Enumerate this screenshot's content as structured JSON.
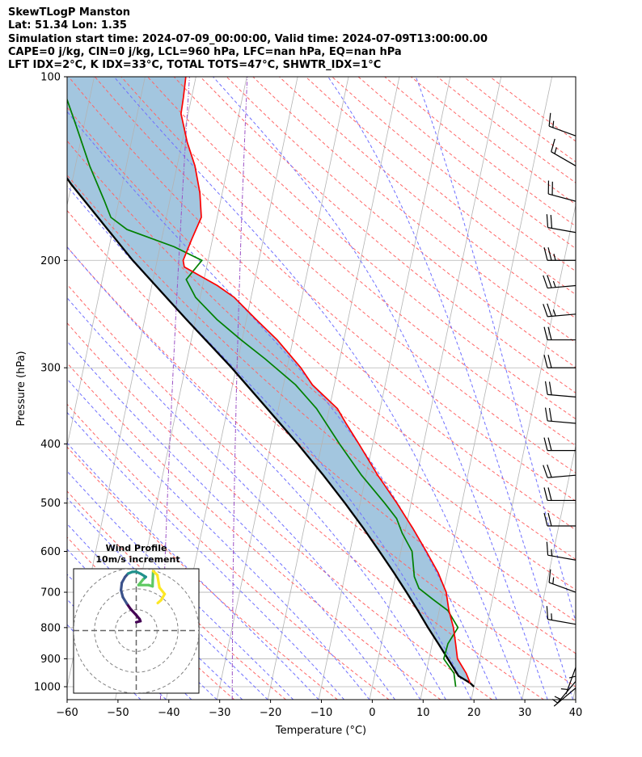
{
  "header": {
    "line1": "SkewTLogP Manston",
    "line2": "Lat: 51.34   Lon: 1.35",
    "line3": "Simulation start time: 2024-07-09_00:00:00, Valid time: 2024-07-09T13:00:00.00",
    "line4": "CAPE=0 j/kg, CIN=0 j/kg, LCL=960 hPa, LFC=nan hPa, EQ=nan hPa",
    "line5": "LFT IDX=2°C, K IDX=33°C, TOTAL TOTS=47°C, SHWTR_IDX=1°C"
  },
  "chart_data": {
    "type": "skew-t",
    "xlabel": "Temperature (°C)",
    "ylabel": "Pressure (hPa)",
    "xlim": [
      -60,
      40
    ],
    "ylim": [
      1040,
      100
    ],
    "x_ticks": [
      -60,
      -50,
      -40,
      -30,
      -20,
      -10,
      0,
      10,
      20,
      30,
      40
    ],
    "x_tick_labels": [
      "−60",
      "−50",
      "−40",
      "−30",
      "−20",
      "−10",
      "0",
      "10",
      "20",
      "30",
      "40"
    ],
    "y_ticks": [
      1000,
      900,
      800,
      700,
      600,
      500,
      400,
      300,
      200,
      100
    ],
    "y_tick_labels": [
      "1000",
      "900",
      "800",
      "700",
      "600",
      "500",
      "400",
      "300",
      "200",
      "100"
    ],
    "grid": true,
    "colors": {
      "temperature": "#ff0000",
      "dewpoint": "#008000",
      "parcel": "#000000",
      "fill": "#a3c6df",
      "dry_adiabat": "#ff6666",
      "moist_adiabat": "#6f6fff",
      "mixing_ratio": "#9a4fc4",
      "isotherm": "#b3b3b3"
    },
    "temperature_profile": {
      "pressure": [
        986,
        950,
        900,
        850,
        800,
        750,
        700,
        650,
        600,
        550,
        500,
        450,
        400,
        370,
        350,
        320,
        300,
        270,
        250,
        230,
        220,
        205,
        200,
        185,
        170,
        155,
        140,
        128,
        115,
        108,
        100
      ],
      "temperature": [
        19.1,
        17.9,
        15.6,
        14.6,
        13.5,
        11.9,
        10.6,
        8.2,
        5.0,
        1.4,
        -2.8,
        -7.7,
        -12.7,
        -16.1,
        -18.4,
        -24.3,
        -27.3,
        -33.1,
        -38.1,
        -43.3,
        -47.1,
        -54.4,
        -54.9,
        -54.1,
        -53.1,
        -54.4,
        -56.5,
        -59.0,
        -61.4,
        -61.6,
        -62.0
      ]
    },
    "dewpoint_profile": {
      "pressure": [
        1000,
        950,
        900,
        850,
        800,
        750,
        720,
        690,
        660,
        600,
        560,
        530,
        500,
        450,
        400,
        350,
        320,
        290,
        270,
        250,
        230,
        215,
        200,
        190,
        178,
        170,
        160,
        140,
        120,
        100
      ],
      "dewpoint": [
        16.4,
        15.5,
        12.9,
        13.1,
        14.4,
        11.7,
        8.4,
        5.1,
        3.7,
        2.2,
        -0.5,
        -2.2,
        -5.2,
        -10.9,
        -16.5,
        -22.5,
        -27.6,
        -34.7,
        -40.2,
        -45.8,
        -50.9,
        -53.5,
        -51.2,
        -57.2,
        -67.2,
        -70.9,
        -72.8,
        -77.2,
        -81.6,
        -86.9
      ]
    },
    "parcel_profile": {
      "pressure": [
        1000,
        986,
        960,
        900,
        850,
        800,
        750,
        700,
        650,
        600,
        550,
        500,
        450,
        400,
        350,
        300,
        250,
        200,
        150,
        100
      ],
      "temperature": [
        20.0,
        19.1,
        16.5,
        13.7,
        11.2,
        8.5,
        5.8,
        2.8,
        -0.5,
        -4.2,
        -8.3,
        -13.0,
        -18.4,
        -24.7,
        -32.2,
        -40.9,
        -51.8,
        -64.8,
        -80.1,
        -99.0
      ]
    },
    "wind_barbs": [
      {
        "pressure": 1005,
        "speed_kt": 5,
        "direction_deg": 230
      },
      {
        "pressure": 980,
        "speed_kt": 5,
        "direction_deg": 220
      },
      {
        "pressure": 930,
        "speed_kt": 5,
        "direction_deg": 200
      },
      {
        "pressure": 880,
        "speed_kt": 5,
        "direction_deg": 180
      },
      {
        "pressure": 790,
        "speed_kt": 15,
        "direction_deg": 280
      },
      {
        "pressure": 700,
        "speed_kt": 15,
        "direction_deg": 290
      },
      {
        "pressure": 620,
        "speed_kt": 15,
        "direction_deg": 280
      },
      {
        "pressure": 545,
        "speed_kt": 20,
        "direction_deg": 270
      },
      {
        "pressure": 495,
        "speed_kt": 20,
        "direction_deg": 270
      },
      {
        "pressure": 450,
        "speed_kt": 20,
        "direction_deg": 265
      },
      {
        "pressure": 410,
        "speed_kt": 20,
        "direction_deg": 270
      },
      {
        "pressure": 370,
        "speed_kt": 20,
        "direction_deg": 275
      },
      {
        "pressure": 335,
        "speed_kt": 20,
        "direction_deg": 275
      },
      {
        "pressure": 300,
        "speed_kt": 20,
        "direction_deg": 270
      },
      {
        "pressure": 270,
        "speed_kt": 20,
        "direction_deg": 270
      },
      {
        "pressure": 245,
        "speed_kt": 25,
        "direction_deg": 265
      },
      {
        "pressure": 220,
        "speed_kt": 25,
        "direction_deg": 265
      },
      {
        "pressure": 200,
        "speed_kt": 25,
        "direction_deg": 270
      },
      {
        "pressure": 180,
        "speed_kt": 20,
        "direction_deg": 280
      },
      {
        "pressure": 160,
        "speed_kt": 20,
        "direction_deg": 285
      },
      {
        "pressure": 140,
        "speed_kt": 15,
        "direction_deg": 300
      },
      {
        "pressure": 125,
        "speed_kt": 15,
        "direction_deg": 290
      }
    ],
    "hodograph": {
      "title_line1": "Wind Profile",
      "title_line2": "10m/s increment",
      "range_ms": 30,
      "rings_ms": [
        10,
        20,
        30
      ],
      "u": [
        0.0,
        2.0,
        1.6,
        0.1,
        -2.6,
        -4.5,
        -6.4,
        -7.3,
        -6.9,
        -5.4,
        -3.9,
        -1.9,
        0.0,
        2.3,
        4.6,
        3.3,
        1.1,
        5.9,
        7.8,
        7.9,
        8.1,
        10.1,
        11.1,
        13.6,
        11.9,
        10.3
      ],
      "v": [
        4.0,
        4.5,
        5.5,
        7.3,
        10.2,
        12.9,
        16.0,
        19.4,
        22.9,
        25.6,
        27.3,
        28.1,
        28.2,
        27.1,
        25.7,
        24.5,
        21.8,
        21.8,
        21.2,
        24.2,
        28.5,
        26.6,
        20.6,
        17.5,
        14.6,
        13.2
      ],
      "colormap": [
        "#440154",
        "#3b528b",
        "#21918c",
        "#5ec962",
        "#fde725"
      ]
    }
  }
}
